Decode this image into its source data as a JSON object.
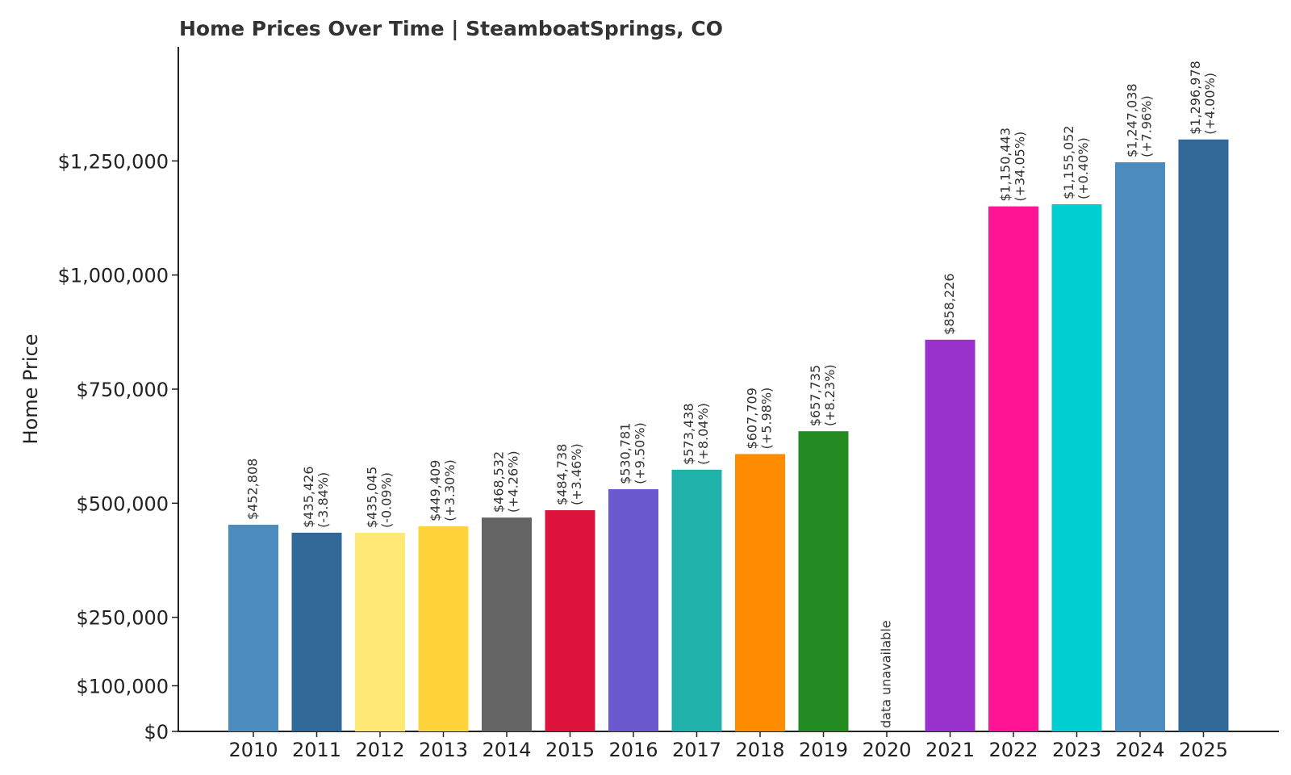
{
  "chart_data": {
    "type": "bar",
    "title": "Home Prices Over Time | SteamboatSprings, CO",
    "xlabel": "",
    "ylabel": "Home Price",
    "ylim": [
      0,
      1500000
    ],
    "yticks": [
      {
        "value": 0,
        "label": "$0"
      },
      {
        "value": 100000,
        "label": "$100,000"
      },
      {
        "value": 250000,
        "label": "$250,000"
      },
      {
        "value": 500000,
        "label": "$500,000"
      },
      {
        "value": 750000,
        "label": "$750,000"
      },
      {
        "value": 1000000,
        "label": "$1,000,000"
      },
      {
        "value": 1250000,
        "label": "$1,250,000"
      }
    ],
    "grid": false,
    "legend": "none",
    "categories": [
      "2010",
      "2011",
      "2012",
      "2013",
      "2014",
      "2015",
      "2016",
      "2017",
      "2018",
      "2019",
      "2020",
      "2021",
      "2022",
      "2023",
      "2024",
      "2025"
    ],
    "values": [
      452808,
      435426,
      435045,
      449409,
      468532,
      484738,
      530781,
      573438,
      607709,
      657735,
      null,
      858226,
      1150443,
      1155052,
      1247038,
      1296978
    ],
    "value_labels": [
      "$452,808",
      "$435,426",
      "$435,045",
      "$449,409",
      "$468,532",
      "$484,738",
      "$530,781",
      "$573,438",
      "$607,709",
      "$657,735",
      "data unavailable",
      "$858,226",
      "$1,150,443",
      "$1,155,052",
      "$1,247,038",
      "$1,296,978"
    ],
    "change_labels": [
      "",
      "(-3.84%)",
      "(-0.09%)",
      "(+3.30%)",
      "(+4.26%)",
      "(+3.46%)",
      "(+9.50%)",
      "(+8.04%)",
      "(+5.98%)",
      "(+8.23%)",
      "",
      "",
      "(+34.05%)",
      "(+0.40%)",
      "(+7.96%)",
      "(+4.00%)"
    ],
    "colors": [
      "#4b8bbe",
      "#306998",
      "#ffe873",
      "#ffd43b",
      "#646464",
      "#dc143c",
      "#6a5acd",
      "#20b2aa",
      "#ff8c00",
      "#228b22",
      "#cccccc",
      "#9932cc",
      "#ff1493",
      "#00ced1",
      "#4b8bbe",
      "#306998"
    ]
  }
}
